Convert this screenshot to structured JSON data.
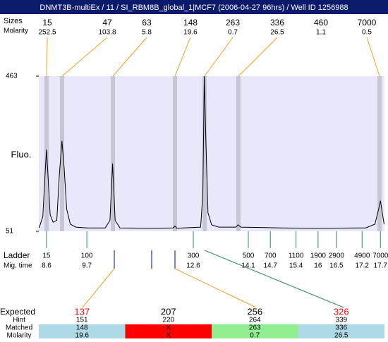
{
  "header": {
    "title": "DNMT3B-multiEx / 11 / SI_RBM8B_global_1|MCF7 (2006-04-27 96hrs) / Well ID 1256988"
  },
  "chart_data": {
    "type": "line",
    "y_label": "Fluo.",
    "color": "#000000",
    "x": [
      8.4,
      8.5,
      8.56,
      8.6,
      8.64,
      8.7,
      8.78,
      8.88,
      8.95,
      9.02,
      9.08,
      9.15,
      9.25,
      9.4,
      9.7,
      10.2,
      10.33,
      10.4,
      10.47,
      10.6,
      11.5,
      12.05,
      12.1,
      12.15,
      12.8,
      12.86,
      12.9,
      12.94,
      13.0,
      13.1,
      13.3,
      13.76,
      13.82,
      13.9,
      15.0,
      16.0,
      17.3,
      17.55,
      17.65,
      17.7,
      17.75,
      17.8
    ],
    "values": [
      60,
      90,
      200,
      268,
      200,
      95,
      75,
      80,
      200,
      291,
      220,
      110,
      70,
      62,
      60,
      60,
      80,
      231,
      80,
      60,
      59,
      60,
      65,
      59,
      62,
      150,
      463,
      300,
      100,
      68,
      62,
      62,
      68,
      62,
      60,
      59,
      60,
      70,
      110,
      132,
      100,
      70
    ],
    "xlim": [
      8.39,
      17.81
    ],
    "ylim": [
      51,
      463
    ],
    "yticks": [
      51,
      463
    ]
  },
  "peaks": {
    "row_labels": [
      "Sizes",
      "Molarity"
    ],
    "sizes": [
      15,
      47,
      63,
      148,
      263,
      336,
      460,
      7000
    ],
    "molarity": [
      252.5,
      103.8,
      5.8,
      19.6,
      0.7,
      26.5,
      1.1,
      0.5
    ]
  },
  "ladder": {
    "row_labels": [
      "Ladder",
      "Mig. time"
    ],
    "sizes": [
      15,
      100,
      300,
      500,
      700,
      1100,
      1900,
      2900,
      4900,
      7000
    ],
    "times": [
      8.6,
      9.7,
      12.6,
      14.1,
      14.7,
      15.4,
      16,
      16.5,
      17.2,
      17.7
    ]
  },
  "expected": {
    "row_labels": [
      "Expected",
      "Hint",
      "Matched",
      "Molarity"
    ],
    "expected": [
      137,
      207,
      256,
      326
    ],
    "expected_colors": [
      "#ff0000",
      "#000000",
      "#000000",
      "#ff0000"
    ],
    "hint": [
      151,
      220,
      264,
      339
    ],
    "matched": [
      148,
      "X",
      263,
      336
    ],
    "molarity": [
      19.6,
      "X",
      0.7,
      26.5
    ],
    "column_colors": [
      "#add8e6",
      "#ff0000",
      "#90ee90",
      "#add8e6"
    ]
  }
}
